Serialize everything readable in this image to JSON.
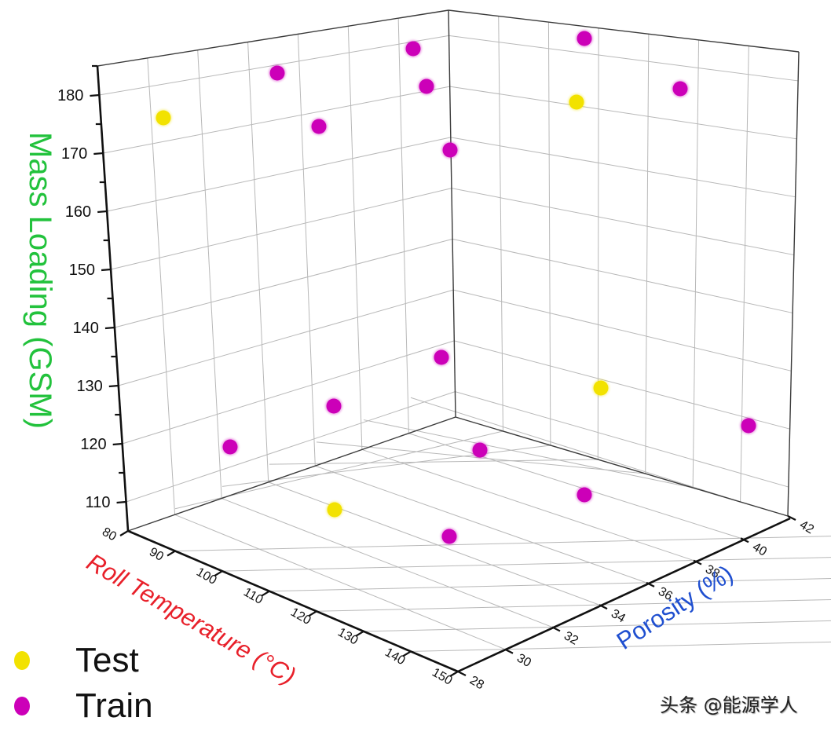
{
  "chart_data": {
    "type": "scatter",
    "dimensions": "3d",
    "title": "",
    "xlabel": "Roll Temperature (°C)",
    "ylabel": "Porosity (%)",
    "zlabel": "Mass Loading (GSM)",
    "xlim": [
      80,
      150
    ],
    "ylim": [
      28,
      42
    ],
    "zlim": [
      105,
      185
    ],
    "x_ticks": [
      "80",
      "90",
      "100",
      "110",
      "120",
      "130",
      "140",
      "150"
    ],
    "y_ticks": [
      "28",
      "30",
      "32",
      "34",
      "36",
      "38",
      "40",
      "42"
    ],
    "z_ticks": [
      "110",
      "120",
      "130",
      "140",
      "150",
      "160",
      "170",
      "180"
    ],
    "grid": true,
    "legend_position": "bottom-left",
    "series": [
      {
        "name": "Test",
        "color": "#f2e200",
        "screen_points": [
          [
            208,
            150
          ],
          [
            734,
            130
          ],
          [
            765,
            494
          ],
          [
            426,
            649
          ]
        ]
      },
      {
        "name": "Train",
        "color": "#cc00b8",
        "screen_points": [
          [
            353,
            93
          ],
          [
            526,
            62
          ],
          [
            744,
            49
          ],
          [
            543,
            110
          ],
          [
            406,
            161
          ],
          [
            573,
            191
          ],
          [
            866,
            113
          ],
          [
            562,
            455
          ],
          [
            425,
            517
          ],
          [
            293,
            569
          ],
          [
            611,
            573
          ],
          [
            953,
            542
          ],
          [
            744,
            630
          ],
          [
            572,
            683
          ]
        ]
      }
    ]
  },
  "labels": {
    "z_axis_title": "Mass Loading (GSM)",
    "x_axis_title": "Roll Temperature (°C)",
    "y_axis_title": "Porosity (%)"
  },
  "legend": {
    "items": [
      {
        "label": "Test",
        "color": "#f2e200"
      },
      {
        "label": "Train",
        "color": "#cc00b8"
      }
    ]
  },
  "colors": {
    "z_title": "#22c23c",
    "x_title": "#e8202a",
    "y_title": "#1f4fd0"
  },
  "watermark": "头条 @能源学人"
}
